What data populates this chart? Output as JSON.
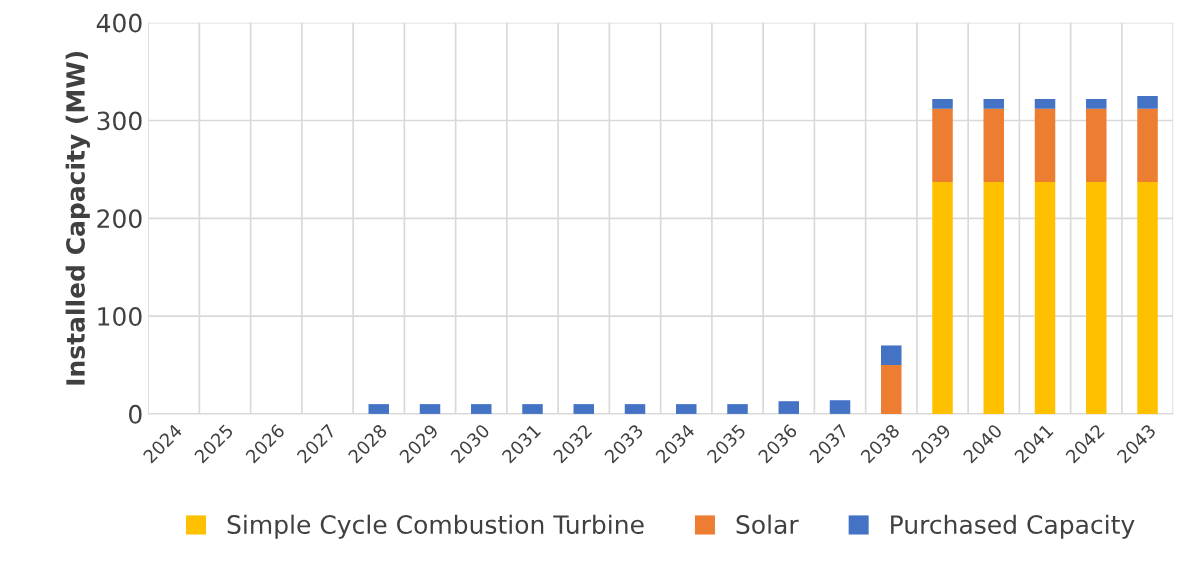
{
  "chart_data": {
    "type": "bar",
    "stacked": true,
    "ylabel": "Installed Capacity (MW)",
    "categories": [
      "2024",
      "2025",
      "2026",
      "2027",
      "2028",
      "2029",
      "2030",
      "2031",
      "2032",
      "2033",
      "2034",
      "2035",
      "2036",
      "2037",
      "2038",
      "2039",
      "2040",
      "2041",
      "2042",
      "2043"
    ],
    "series": [
      {
        "name": "Simple Cycle Combustion Turbine",
        "color": "#ffc000",
        "values": [
          0,
          0,
          0,
          0,
          0,
          0,
          0,
          0,
          0,
          0,
          0,
          0,
          0,
          0,
          0,
          237,
          237,
          237,
          237,
          237
        ]
      },
      {
        "name": "Solar",
        "color": "#ed7d31",
        "values": [
          0,
          0,
          0,
          0,
          0,
          0,
          0,
          0,
          0,
          0,
          0,
          0,
          0,
          0,
          50,
          75,
          75,
          75,
          75,
          75
        ]
      },
      {
        "name": "Purchased Capacity",
        "color": "#4472c4",
        "values": [
          0,
          0,
          0,
          0,
          10,
          10,
          10,
          10,
          10,
          10,
          10,
          10,
          13,
          14,
          20,
          10,
          10,
          10,
          10,
          13
        ]
      }
    ],
    "ylim": [
      0,
      400
    ],
    "yticks": [
      0,
      100,
      200,
      300,
      400
    ],
    "grid": true,
    "legend": "bottom"
  }
}
